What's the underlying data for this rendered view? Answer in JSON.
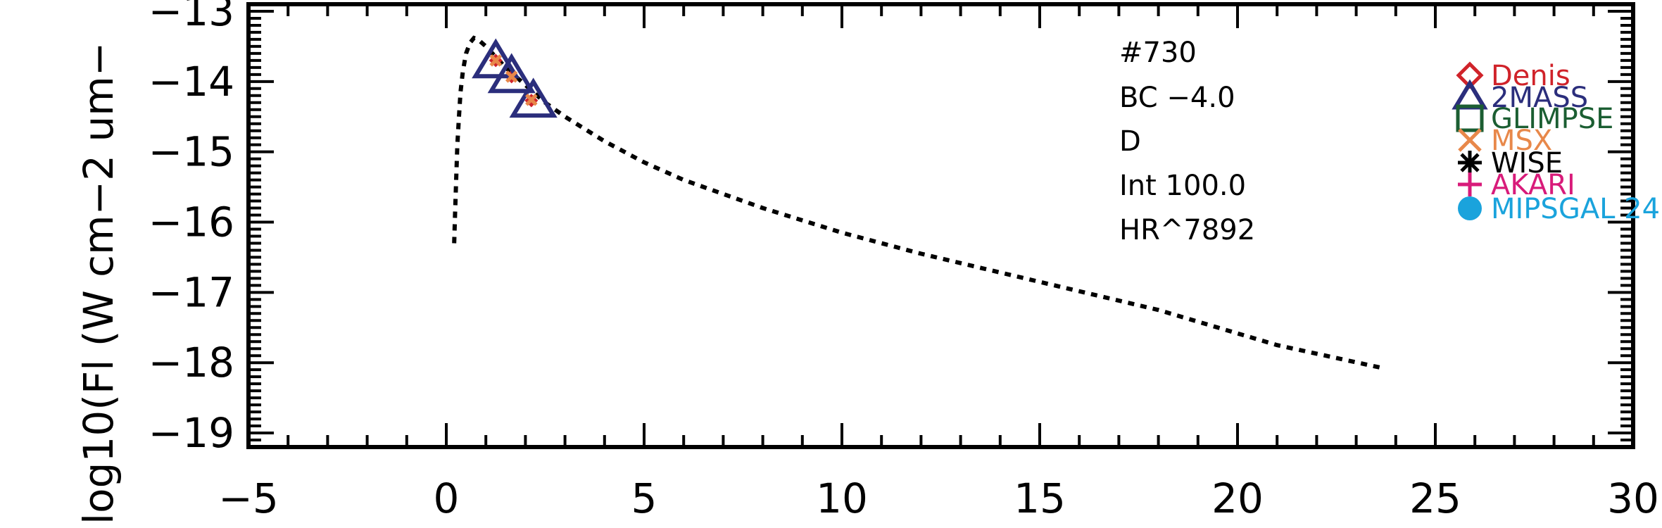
{
  "chart_data": {
    "type": "scatter",
    "title": "",
    "xlabel": "",
    "ylabel": "log10(Fl (W cm−2 um−",
    "xlim": [
      -5,
      30
    ],
    "ylim": [
      -19.2,
      -12.9
    ],
    "x_ticks": [
      -5,
      0,
      5,
      10,
      15,
      20,
      25,
      30
    ],
    "x_tick_labels": [
      "−5",
      "0",
      "5",
      "10",
      "15",
      "20",
      "25",
      "30"
    ],
    "y_ticks": [
      -19,
      -18,
      -17,
      -16,
      -15,
      -14,
      -13
    ],
    "y_tick_labels": [
      "−19",
      "−18",
      "−17",
      "−16",
      "−15",
      "−14",
      "−13"
    ],
    "grid": false,
    "legend_position": "top-right",
    "annotations": [
      "#730",
      "BC −4.0",
      "D",
      "Int 100.0",
      "HR^7892"
    ],
    "model_curve": {
      "style": "dotted",
      "color": "#000000",
      "x": [
        0.2,
        0.22,
        0.25,
        0.28,
        0.32,
        0.36,
        0.42,
        0.5,
        0.6,
        0.7,
        0.8,
        1.0,
        1.2,
        1.5,
        2.0,
        2.5,
        3.0,
        4.0,
        5.0,
        6.0,
        8.0,
        10.0,
        12.0,
        15.0,
        18.0,
        21.0,
        23.7
      ],
      "y": [
        -16.3,
        -15.9,
        -15.4,
        -14.9,
        -14.5,
        -14.15,
        -13.85,
        -13.6,
        -13.45,
        -13.38,
        -13.4,
        -13.5,
        -13.62,
        -13.8,
        -14.05,
        -14.3,
        -14.5,
        -14.85,
        -15.15,
        -15.4,
        -15.8,
        -16.15,
        -16.45,
        -16.85,
        -17.25,
        -17.75,
        -18.08
      ]
    },
    "series": [
      {
        "name": "Denis",
        "marker": "diamond",
        "color": "#d0232a",
        "x": [
          1.25,
          1.65,
          2.15
        ],
        "y": [
          -13.7,
          -13.93,
          -14.27
        ]
      },
      {
        "name": "2MASS",
        "marker": "triangle",
        "color": "#2b2e7c",
        "x": [
          1.25,
          1.65,
          2.2
        ],
        "y": [
          -13.72,
          -13.93,
          -14.28
        ]
      },
      {
        "name": "GLIMPSE",
        "marker": "square",
        "color": "#1b5e32",
        "x": [],
        "y": []
      },
      {
        "name": "MSX",
        "marker": "x",
        "color": "#e8884a",
        "x": [
          1.25,
          1.65,
          2.15
        ],
        "y": [
          -13.7,
          -13.93,
          -14.26
        ]
      },
      {
        "name": "WISE",
        "marker": "asterisk",
        "color": "#000000",
        "x": [],
        "y": []
      },
      {
        "name": "AKARI",
        "marker": "plus",
        "color": "#d81b7a",
        "x": [],
        "y": []
      },
      {
        "name": "MIPSGAL 24",
        "marker": "circle",
        "color": "#1aa3dc",
        "x": [],
        "y": []
      }
    ]
  }
}
